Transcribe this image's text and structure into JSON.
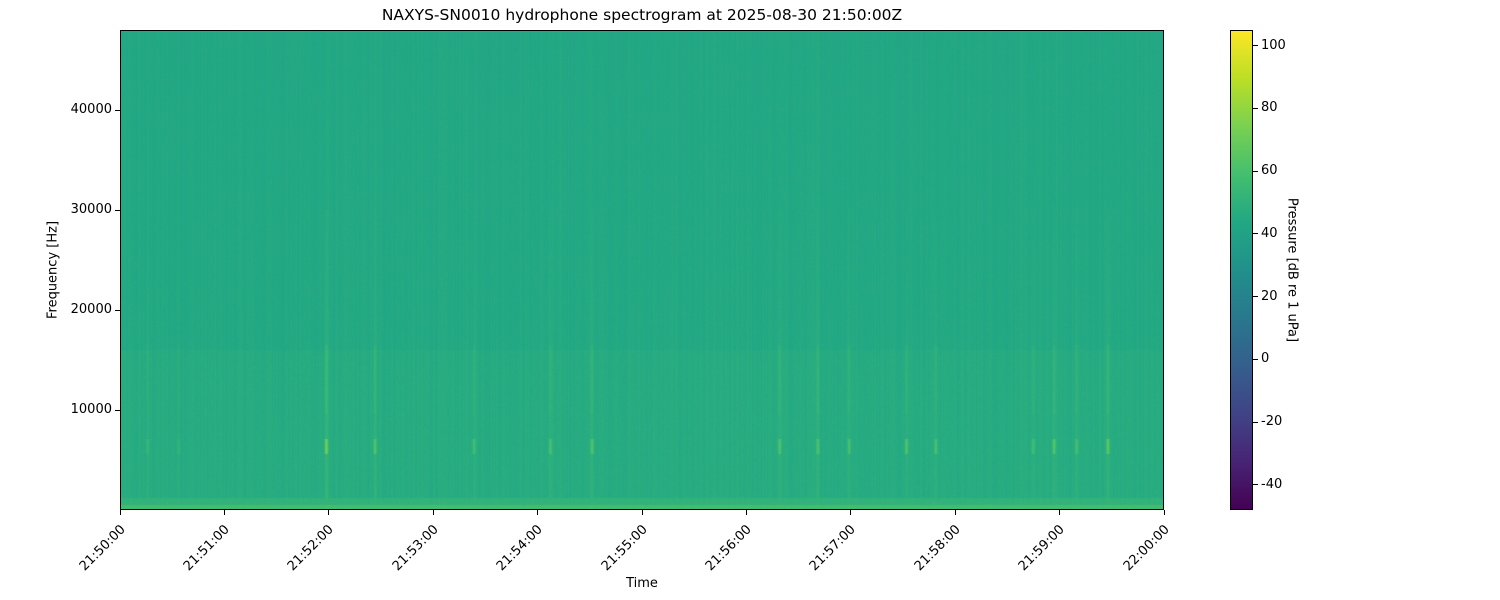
{
  "chart_data": {
    "type": "heatmap",
    "title": "NAXYS-SN0010 hydrophone spectrogram at 2025-08-30 21:50:00Z",
    "xlabel": "Time",
    "ylabel": "Frequency [Hz]",
    "colorbar_label": "Pressure [dB re 1 uPa]",
    "colormap": "viridis",
    "xlim": [
      "21:50:00",
      "22:00:00"
    ],
    "ylim": [
      0,
      48000
    ],
    "clim": [
      -48,
      105
    ],
    "x_ticks": [
      "21:50:00",
      "21:51:00",
      "21:52:00",
      "21:53:00",
      "21:54:00",
      "21:55:00",
      "21:56:00",
      "21:57:00",
      "21:58:00",
      "21:59:00",
      "22:00:00"
    ],
    "y_ticks": [
      10000,
      20000,
      30000,
      40000
    ],
    "colorbar_ticks": [
      -40,
      -20,
      0,
      20,
      40,
      60,
      80,
      100
    ],
    "background_level_db": 45,
    "low_frequency_band_level_db": 58,
    "transient_band_hz": [
      5500,
      7000
    ],
    "transient_times": [
      "21:50:15",
      "21:50:33",
      "21:51:58",
      "21:52:26",
      "21:53:23",
      "21:54:07",
      "21:54:31",
      "21:56:19",
      "21:56:41",
      "21:56:59",
      "21:57:32",
      "21:57:49",
      "21:58:45",
      "21:58:57",
      "21:59:10",
      "21:59:28"
    ],
    "transient_peak_db": [
      52,
      50,
      72,
      62,
      58,
      60,
      62,
      62,
      60,
      60,
      64,
      60,
      58,
      64,
      58,
      66
    ]
  }
}
